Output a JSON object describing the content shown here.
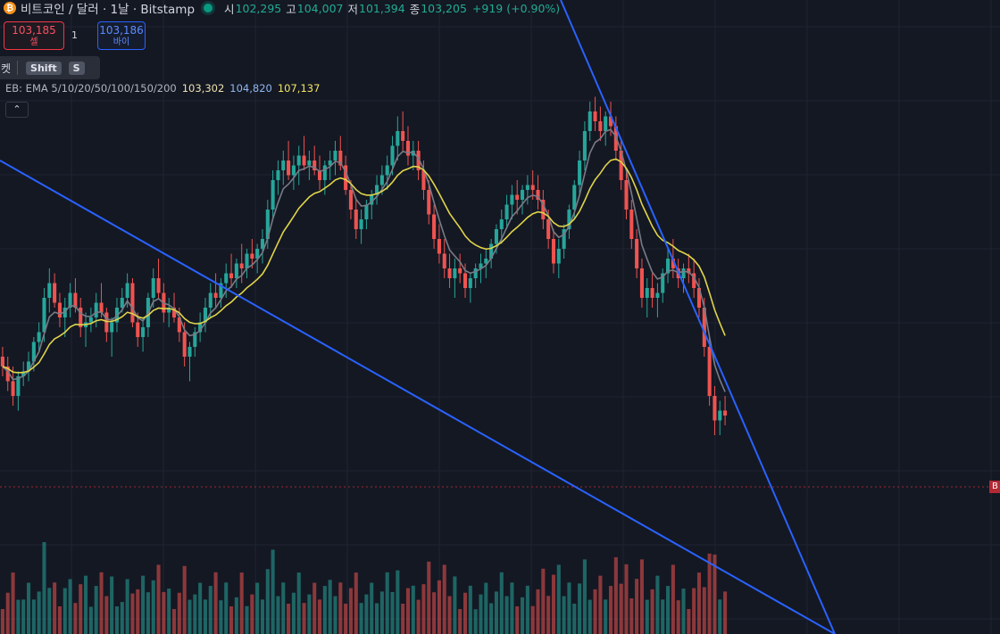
{
  "header": {
    "coin_icon": "bitcoin-icon",
    "coin_symbol": "₿",
    "title": "비트코인 / 달러 · 1날 · Bitstamp",
    "ohlc": [
      {
        "key": "시",
        "value": "102,295"
      },
      {
        "key": "고",
        "value": "104,007"
      },
      {
        "key": "저",
        "value": "101,394"
      },
      {
        "key": "종",
        "value": "103,205"
      }
    ],
    "change": "+919 (+0.90%)"
  },
  "trade": {
    "sell_price": "103,185",
    "sell_label": "셀",
    "quantity": "1",
    "buy_price": "103,186",
    "buy_label": "바이"
  },
  "hint": {
    "text": "켓",
    "key1": "Shift",
    "key2": "S"
  },
  "indicator": {
    "label": "EB: EMA 5/10/20/50/100/150/200",
    "v1": "103,302",
    "v2": "104,820",
    "v3": "107,137"
  },
  "collapse": {
    "icon": "chevron-up-icon",
    "glyph": "⌃"
  },
  "price_tag": {
    "text": "B"
  },
  "colors": {
    "background": "#141823",
    "up": "#26a69a",
    "down": "#ef5350",
    "trendline": "#2962ff",
    "ema_fast": "#787b86",
    "ema_slow": "#e0d44a"
  },
  "chart_data": {
    "type": "candlestick",
    "x_range": [
      0,
      1
    ],
    "y_range": [
      0,
      1
    ],
    "ohlc_shape": [
      [
        0.4,
        0.42,
        0.36,
        0.38
      ],
      [
        0.38,
        0.4,
        0.33,
        0.35
      ],
      [
        0.35,
        0.38,
        0.3,
        0.32
      ],
      [
        0.32,
        0.37,
        0.29,
        0.36
      ],
      [
        0.36,
        0.39,
        0.34,
        0.37
      ],
      [
        0.37,
        0.41,
        0.35,
        0.39
      ],
      [
        0.39,
        0.44,
        0.37,
        0.43
      ],
      [
        0.43,
        0.47,
        0.41,
        0.45
      ],
      [
        0.45,
        0.54,
        0.43,
        0.52
      ],
      [
        0.52,
        0.58,
        0.49,
        0.55
      ],
      [
        0.55,
        0.57,
        0.5,
        0.51
      ],
      [
        0.51,
        0.53,
        0.46,
        0.48
      ],
      [
        0.48,
        0.52,
        0.44,
        0.5
      ],
      [
        0.5,
        0.55,
        0.48,
        0.53
      ],
      [
        0.53,
        0.56,
        0.49,
        0.5
      ],
      [
        0.5,
        0.52,
        0.44,
        0.46
      ],
      [
        0.46,
        0.49,
        0.42,
        0.47
      ],
      [
        0.47,
        0.5,
        0.45,
        0.48
      ],
      [
        0.48,
        0.53,
        0.46,
        0.51
      ],
      [
        0.51,
        0.55,
        0.48,
        0.49
      ],
      [
        0.49,
        0.5,
        0.43,
        0.45
      ],
      [
        0.45,
        0.48,
        0.4,
        0.47
      ],
      [
        0.47,
        0.52,
        0.45,
        0.5
      ],
      [
        0.5,
        0.54,
        0.49,
        0.52
      ],
      [
        0.52,
        0.57,
        0.5,
        0.55
      ],
      [
        0.55,
        0.56,
        0.46,
        0.47
      ],
      [
        0.47,
        0.49,
        0.42,
        0.44
      ],
      [
        0.44,
        0.48,
        0.41,
        0.46
      ],
      [
        0.46,
        0.53,
        0.44,
        0.52
      ],
      [
        0.52,
        0.58,
        0.5,
        0.56
      ],
      [
        0.56,
        0.6,
        0.52,
        0.53
      ],
      [
        0.53,
        0.55,
        0.47,
        0.49
      ],
      [
        0.49,
        0.52,
        0.46,
        0.5
      ],
      [
        0.5,
        0.53,
        0.47,
        0.48
      ],
      [
        0.48,
        0.5,
        0.43,
        0.45
      ],
      [
        0.45,
        0.47,
        0.38,
        0.4
      ],
      [
        0.4,
        0.43,
        0.35,
        0.42
      ],
      [
        0.42,
        0.46,
        0.4,
        0.45
      ],
      [
        0.45,
        0.49,
        0.43,
        0.47
      ],
      [
        0.47,
        0.52,
        0.45,
        0.5
      ],
      [
        0.5,
        0.55,
        0.48,
        0.53
      ],
      [
        0.53,
        0.57,
        0.5,
        0.52
      ],
      [
        0.52,
        0.56,
        0.5,
        0.55
      ],
      [
        0.55,
        0.59,
        0.52,
        0.57
      ],
      [
        0.57,
        0.61,
        0.54,
        0.56
      ],
      [
        0.56,
        0.6,
        0.54,
        0.59
      ],
      [
        0.59,
        0.63,
        0.55,
        0.58
      ],
      [
        0.58,
        0.62,
        0.56,
        0.61
      ],
      [
        0.61,
        0.64,
        0.58,
        0.6
      ],
      [
        0.6,
        0.63,
        0.57,
        0.62
      ],
      [
        0.62,
        0.66,
        0.59,
        0.64
      ],
      [
        0.64,
        0.72,
        0.62,
        0.7
      ],
      [
        0.7,
        0.78,
        0.68,
        0.76
      ],
      [
        0.76,
        0.8,
        0.73,
        0.78
      ],
      [
        0.78,
        0.82,
        0.75,
        0.8
      ],
      [
        0.8,
        0.84,
        0.76,
        0.77
      ],
      [
        0.77,
        0.81,
        0.74,
        0.79
      ],
      [
        0.79,
        0.83,
        0.75,
        0.81
      ],
      [
        0.81,
        0.85,
        0.78,
        0.79
      ],
      [
        0.79,
        0.82,
        0.76,
        0.8
      ],
      [
        0.8,
        0.83,
        0.77,
        0.78
      ],
      [
        0.78,
        0.81,
        0.74,
        0.76
      ],
      [
        0.76,
        0.8,
        0.73,
        0.79
      ],
      [
        0.79,
        0.82,
        0.76,
        0.8
      ],
      [
        0.8,
        0.84,
        0.77,
        0.82
      ],
      [
        0.82,
        0.85,
        0.78,
        0.79
      ],
      [
        0.79,
        0.81,
        0.73,
        0.74
      ],
      [
        0.74,
        0.76,
        0.68,
        0.7
      ],
      [
        0.7,
        0.72,
        0.64,
        0.66
      ],
      [
        0.66,
        0.7,
        0.63,
        0.68
      ],
      [
        0.68,
        0.72,
        0.66,
        0.71
      ],
      [
        0.71,
        0.74,
        0.68,
        0.73
      ],
      [
        0.73,
        0.77,
        0.71,
        0.75
      ],
      [
        0.75,
        0.79,
        0.73,
        0.77
      ],
      [
        0.77,
        0.81,
        0.74,
        0.79
      ],
      [
        0.79,
        0.85,
        0.77,
        0.83
      ],
      [
        0.83,
        0.89,
        0.8,
        0.86
      ],
      [
        0.86,
        0.9,
        0.82,
        0.84
      ],
      [
        0.84,
        0.87,
        0.79,
        0.81
      ],
      [
        0.81,
        0.84,
        0.78,
        0.82
      ],
      [
        0.82,
        0.84,
        0.76,
        0.78
      ],
      [
        0.78,
        0.8,
        0.72,
        0.74
      ],
      [
        0.74,
        0.76,
        0.67,
        0.69
      ],
      [
        0.69,
        0.71,
        0.62,
        0.64
      ],
      [
        0.64,
        0.67,
        0.59,
        0.61
      ],
      [
        0.61,
        0.64,
        0.56,
        0.58
      ],
      [
        0.58,
        0.61,
        0.54,
        0.56
      ],
      [
        0.56,
        0.6,
        0.52,
        0.58
      ],
      [
        0.58,
        0.61,
        0.55,
        0.57
      ],
      [
        0.57,
        0.59,
        0.52,
        0.54
      ],
      [
        0.54,
        0.57,
        0.51,
        0.56
      ],
      [
        0.56,
        0.59,
        0.54,
        0.58
      ],
      [
        0.58,
        0.61,
        0.55,
        0.59
      ],
      [
        0.59,
        0.62,
        0.56,
        0.6
      ],
      [
        0.6,
        0.64,
        0.58,
        0.63
      ],
      [
        0.63,
        0.67,
        0.61,
        0.66
      ],
      [
        0.66,
        0.7,
        0.63,
        0.68
      ],
      [
        0.68,
        0.73,
        0.66,
        0.71
      ],
      [
        0.71,
        0.75,
        0.68,
        0.73
      ],
      [
        0.73,
        0.76,
        0.69,
        0.72
      ],
      [
        0.72,
        0.75,
        0.69,
        0.74
      ],
      [
        0.74,
        0.77,
        0.71,
        0.75
      ],
      [
        0.75,
        0.78,
        0.72,
        0.74
      ],
      [
        0.74,
        0.77,
        0.7,
        0.72
      ],
      [
        0.72,
        0.74,
        0.66,
        0.68
      ],
      [
        0.68,
        0.7,
        0.62,
        0.64
      ],
      [
        0.64,
        0.66,
        0.57,
        0.59
      ],
      [
        0.59,
        0.64,
        0.56,
        0.62
      ],
      [
        0.62,
        0.67,
        0.6,
        0.66
      ],
      [
        0.66,
        0.71,
        0.64,
        0.7
      ],
      [
        0.7,
        0.76,
        0.68,
        0.75
      ],
      [
        0.75,
        0.82,
        0.73,
        0.8
      ],
      [
        0.8,
        0.88,
        0.78,
        0.86
      ],
      [
        0.86,
        0.92,
        0.84,
        0.9
      ],
      [
        0.9,
        0.93,
        0.86,
        0.88
      ],
      [
        0.88,
        0.91,
        0.84,
        0.86
      ],
      [
        0.86,
        0.9,
        0.83,
        0.89
      ],
      [
        0.89,
        0.92,
        0.85,
        0.87
      ],
      [
        0.87,
        0.89,
        0.8,
        0.82
      ],
      [
        0.82,
        0.84,
        0.74,
        0.76
      ],
      [
        0.76,
        0.78,
        0.68,
        0.7
      ],
      [
        0.7,
        0.72,
        0.62,
        0.64
      ],
      [
        0.64,
        0.66,
        0.56,
        0.58
      ],
      [
        0.58,
        0.6,
        0.5,
        0.52
      ],
      [
        0.52,
        0.56,
        0.48,
        0.54
      ],
      [
        0.54,
        0.57,
        0.5,
        0.52
      ],
      [
        0.52,
        0.55,
        0.48,
        0.53
      ],
      [
        0.53,
        0.58,
        0.51,
        0.57
      ],
      [
        0.57,
        0.62,
        0.55,
        0.6
      ],
      [
        0.6,
        0.64,
        0.56,
        0.58
      ],
      [
        0.58,
        0.6,
        0.54,
        0.56
      ],
      [
        0.56,
        0.59,
        0.53,
        0.58
      ],
      [
        0.58,
        0.61,
        0.55,
        0.57
      ],
      [
        0.57,
        0.6,
        0.52,
        0.54
      ],
      [
        0.54,
        0.56,
        0.48,
        0.5
      ],
      [
        0.5,
        0.52,
        0.4,
        0.42
      ],
      [
        0.42,
        0.44,
        0.3,
        0.32
      ],
      [
        0.32,
        0.34,
        0.24,
        0.27
      ],
      [
        0.27,
        0.31,
        0.24,
        0.29
      ],
      [
        0.29,
        0.32,
        0.26,
        0.28
      ]
    ]
  }
}
